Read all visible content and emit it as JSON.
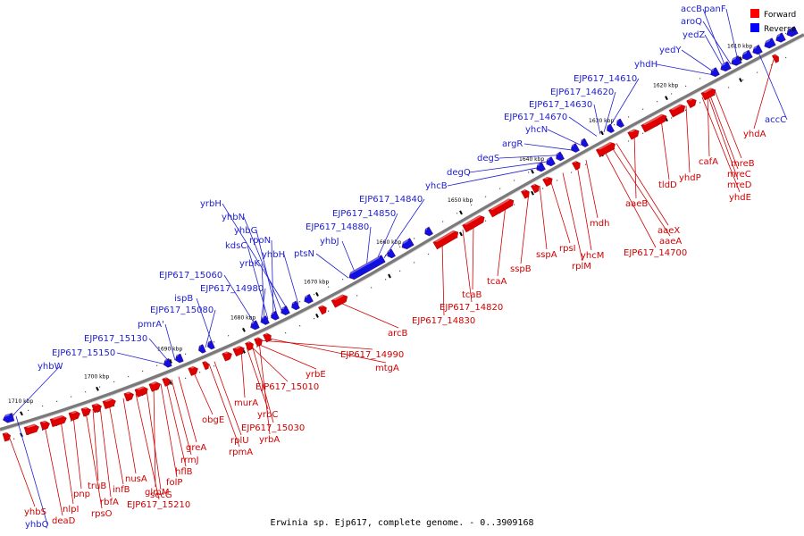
{
  "caption": "Erwinia sp. Ejp617, complete genome. - 0..3909168",
  "legend": {
    "forward_label": "Forward",
    "reverse_label": "Reverse",
    "forward_color": "#ff0000",
    "reverse_color": "#0000ff"
  },
  "colors": {
    "forward": "#e00000",
    "reverse": "#1010e0",
    "backbone": "#7a7a7a"
  },
  "ticks": [
    "1610 kbp",
    "1620 kbp",
    "1630 kbp",
    "1640 kbp",
    "1650 kbp",
    "1660 kbp",
    "1670 kbp",
    "1680 kbp",
    "1690 kbp",
    "1700 kbp",
    "1710 kbp"
  ],
  "reverse_labels": [
    "accB",
    "panF",
    "aroQ",
    "yedZ",
    "yedY",
    "yhdH",
    "accC",
    "EJP617_14610",
    "EJP617_14620",
    "EJP617_14630",
    "EJP617_14670",
    "yhcN",
    "argR",
    "degS",
    "degQ",
    "yhcB",
    "EJP617_14840",
    "EJP617_14850",
    "EJP617_14880",
    "yhbJ",
    "ptsN",
    "yrbH",
    "yhbN",
    "yhbG",
    "rpoN",
    "kdsC",
    "yrbK",
    "yhbH",
    "EJP617_15060",
    "EJP617_14980",
    "ispB",
    "EJP617_15080",
    "pmrA'",
    "EJP617_15130",
    "EJP617_15150",
    "yhbW",
    "yhbQ"
  ],
  "forward_labels": [
    "yhdA",
    "mreB",
    "cafA",
    "mreC",
    "mreD",
    "yhdE",
    "yhdP",
    "tldD",
    "aaeB",
    "aaeX",
    "aaeA",
    "EJP617_14700",
    "mdh",
    "yhcM",
    "rplM",
    "rpsI",
    "sspA",
    "sspB",
    "tcaA",
    "tcaB",
    "EJP617_14820",
    "EJP617_14830",
    "arcB",
    "EJP617_14990",
    "mtgA",
    "yrbE",
    "EJP617_15010",
    "murA",
    "yrbC",
    "EJP617_15030",
    "yrbA",
    "rplU",
    "rpmA",
    "obgE",
    "greA",
    "rrmJ",
    "hflB",
    "folP",
    "glmM",
    "secG",
    "EJP617_15210",
    "nusA",
    "infB",
    "rbfA",
    "truB",
    "rpsO",
    "pnp",
    "nlpI",
    "deaD",
    "yhbS"
  ]
}
